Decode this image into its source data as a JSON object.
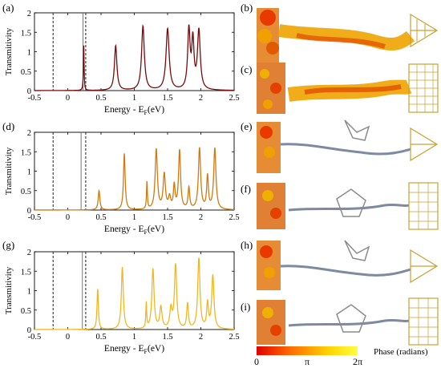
{
  "panels": {
    "a": "(a)",
    "b": "(b)",
    "c": "(c)",
    "d": "(d)",
    "e": "(e)",
    "f": "(f)",
    "g": "(g)",
    "h": "(h)",
    "i": "(i)"
  },
  "colorbar": {
    "label": "Phase (radians)",
    "ticks": [
      "0",
      "π",
      "2π"
    ],
    "colors": [
      "#e00000",
      "#ff6a00",
      "#ffd000",
      "#ffff40"
    ]
  },
  "axes_text": {
    "ylabel": "Transmitivity",
    "xlabel_main": "Energy - E",
    "xlabel_sub": "F",
    "xlabel_unit": "(eV)",
    "xticks": [
      "-0.5",
      "0",
      "0.5",
      "1",
      "1.5",
      "2",
      "2.5"
    ],
    "yticks": [
      "0",
      "0.5",
      "1",
      "1.5",
      "2"
    ]
  },
  "chart_data": [
    {
      "type": "line",
      "panel": "a",
      "xlabel": "Energy - EF(eV)",
      "ylabel": "Transmitivity",
      "xlim": [
        -0.5,
        2.5
      ],
      "ylim": [
        0,
        2
      ],
      "color": "#7a0a0a",
      "dashed_lines_x": [
        -0.22,
        0.27
      ],
      "solid_lines_x": [
        0.23
      ],
      "peaks": [
        [
          0.24,
          1.22,
          0.006
        ],
        [
          0.72,
          1.15,
          0.022
        ],
        [
          1.13,
          1.65,
          0.025
        ],
        [
          1.5,
          1.58,
          0.028
        ],
        [
          1.82,
          1.52,
          0.022
        ],
        [
          1.88,
          1.22,
          0.02
        ],
        [
          1.97,
          1.52,
          0.025
        ]
      ]
    },
    {
      "type": "line",
      "panel": "d",
      "xlabel": "Energy - EF(eV)",
      "ylabel": "Transmitivity",
      "xlim": [
        -0.5,
        2.5
      ],
      "ylim": [
        0,
        2
      ],
      "color": "#d07a10",
      "dashed_lines_x": [
        -0.22,
        0.27
      ],
      "solid_lines_x": [
        0.2
      ],
      "peaks": [
        [
          0.47,
          0.5,
          0.015
        ],
        [
          0.85,
          1.45,
          0.015
        ],
        [
          1.19,
          0.72,
          0.008
        ],
        [
          1.33,
          1.55,
          0.02
        ],
        [
          1.45,
          0.9,
          0.02
        ],
        [
          1.53,
          0.3,
          0.02
        ],
        [
          1.6,
          0.6,
          0.015
        ],
        [
          1.68,
          1.52,
          0.018
        ],
        [
          1.82,
          0.55,
          0.015
        ],
        [
          1.98,
          1.58,
          0.02
        ],
        [
          2.1,
          0.85,
          0.015
        ],
        [
          2.21,
          1.58,
          0.02
        ]
      ]
    },
    {
      "type": "line",
      "panel": "g",
      "xlabel": "Energy - EF(eV)",
      "ylabel": "Transmitivity",
      "xlim": [
        -0.5,
        2.5
      ],
      "ylim": [
        0,
        2
      ],
      "color": "#f0b820",
      "dashed_lines_x": [
        -0.22,
        0.27
      ],
      "solid_lines_x": [
        0.22
      ],
      "peaks": [
        [
          0.45,
          1.05,
          0.012
        ],
        [
          0.82,
          1.6,
          0.018
        ],
        [
          1.18,
          0.65,
          0.008
        ],
        [
          1.28,
          1.55,
          0.02
        ],
        [
          1.4,
          0.55,
          0.02
        ],
        [
          1.55,
          0.5,
          0.02
        ],
        [
          1.62,
          1.65,
          0.02
        ],
        [
          1.8,
          0.65,
          0.015
        ],
        [
          1.97,
          1.82,
          0.02
        ],
        [
          2.1,
          0.65,
          0.015
        ],
        [
          2.18,
          1.38,
          0.02
        ]
      ]
    }
  ]
}
